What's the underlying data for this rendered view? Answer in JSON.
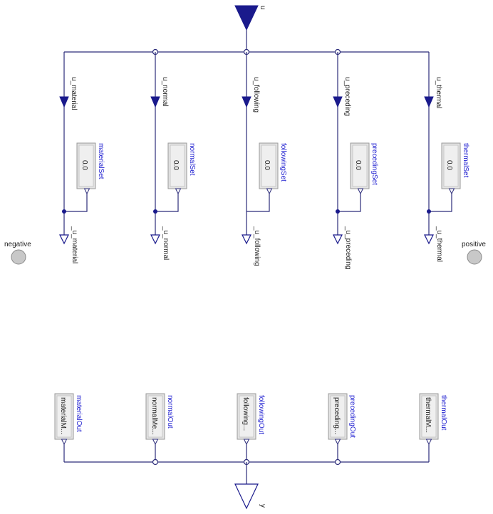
{
  "input": {
    "name": "u"
  },
  "output": {
    "name": "y"
  },
  "pins": {
    "negative": "negative",
    "positive": "positive"
  },
  "colors": {
    "wire": "#2c2c7a",
    "instance_label": "#1f1fd0",
    "pin_fill": "#c8c8c8"
  },
  "branches": [
    {
      "in_label": "u_material",
      "set_name": "materialSet",
      "set_value": "0.0",
      "out_label": "_u_material",
      "out_block": "materialOut",
      "out_text": "materialM..."
    },
    {
      "in_label": "u_normal",
      "set_name": "normalSet",
      "set_value": "0.0",
      "out_label": "_u_normal",
      "out_block": "normalOut",
      "out_text": "normalMe..."
    },
    {
      "in_label": "u_following",
      "set_name": "followingSet",
      "set_value": "0.0",
      "out_label": "_u_following",
      "out_block": "followingOut",
      "out_text": "following..."
    },
    {
      "in_label": "u_preceding",
      "set_name": "precedingSet",
      "set_value": "0.0",
      "out_label": "_u_preceding",
      "out_block": "precedingOut",
      "out_text": "preceding..."
    },
    {
      "in_label": "u_thermal",
      "set_name": "thermalSet",
      "set_value": "0.0",
      "out_label": "_u_thermal",
      "out_block": "thermalOut",
      "out_text": "thermalM..."
    }
  ]
}
